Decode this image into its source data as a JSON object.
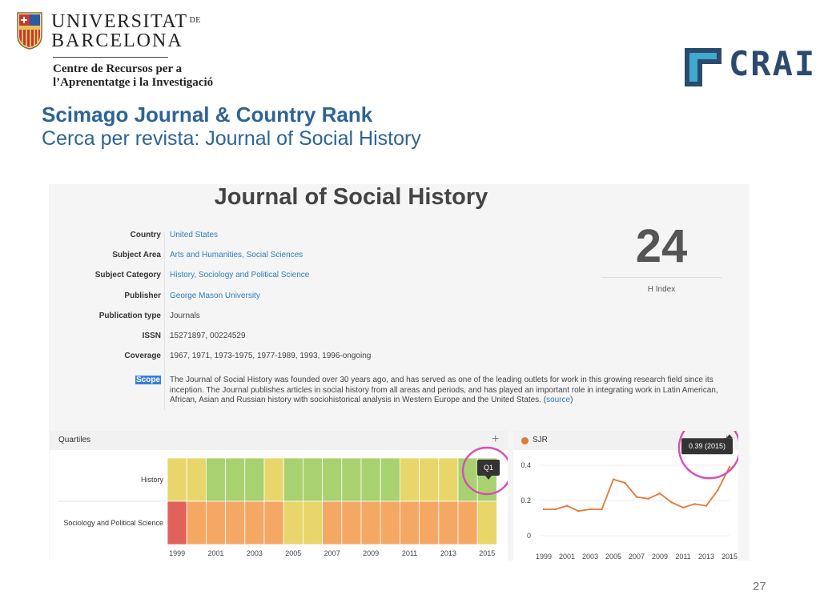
{
  "header": {
    "university_line1": "UNIVERSITAT",
    "university_de": "DE",
    "university_line2": "BARCELONA",
    "centre_line1": "Centre de Recursos per a",
    "centre_line2": "l’Aprenentatge i la Investigació",
    "crai_logo_text": "CRAI"
  },
  "slide": {
    "title": "Scimago Journal & Country Rank",
    "subtitle": "Cerca per revista: Journal of Social History",
    "page_number": "27"
  },
  "journal": {
    "title": "Journal of Social History",
    "fields": [
      {
        "label": "Country",
        "value": "United States",
        "link": true
      },
      {
        "label": "Subject Area",
        "value": "Arts and Humanities, Social Sciences",
        "link": true
      },
      {
        "label": "Subject Category",
        "value": "History, Sociology and Political Science",
        "link": true
      },
      {
        "label": "Publisher",
        "value": "George Mason University",
        "link": true
      },
      {
        "label": "Publication type",
        "value": "Journals",
        "link": false
      },
      {
        "label": "ISSN",
        "value": "15271897, 00224529",
        "link": false
      },
      {
        "label": "Coverage",
        "value": "1967, 1971, 1973-1975, 1977-1989, 1993, 1996-ongoing",
        "link": false
      }
    ],
    "scope_label": "Scope",
    "scope_text": "The Journal of Social History was founded over 30 years ago, and has served as one of the leading outlets for work in this growing research field since its inception. The Journal publishes articles in social history from all areas and periods, and has played an important role in integrating work in Latin American, African, Asian and Russian history with sociohistorical analysis in Western Europe and the United States. (",
    "scope_source_link": "source",
    "scope_close": ")",
    "h_index_value": "24",
    "h_index_label": "H Index"
  },
  "quartiles": {
    "title": "Quartiles",
    "plus_label": "+",
    "years": [
      1999,
      2000,
      2001,
      2002,
      2003,
      2004,
      2005,
      2006,
      2007,
      2008,
      2009,
      2010,
      2011,
      2012,
      2013,
      2014,
      2015
    ],
    "axis_labels": [
      "1999",
      "2001",
      "2003",
      "2005",
      "2007",
      "2009",
      "2011",
      "2013",
      "2015"
    ],
    "colors": {
      "Q1": "#a8d26f",
      "Q2": "#e8d66a",
      "Q3": "#f5a863",
      "Q4": "#e0625a"
    },
    "rows": [
      {
        "category": "History",
        "quartiles": [
          "Q2",
          "Q2",
          "Q1",
          "Q1",
          "Q1",
          "Q2",
          "Q1",
          "Q1",
          "Q1",
          "Q1",
          "Q1",
          "Q1",
          "Q2",
          "Q2",
          "Q2",
          "Q1",
          "Q1"
        ]
      },
      {
        "category": "Sociology and Political Science",
        "quartiles": [
          "Q4",
          "Q3",
          "Q3",
          "Q3",
          "Q3",
          "Q3",
          "Q2",
          "Q2",
          "Q3",
          "Q3",
          "Q3",
          "Q3",
          "Q3",
          "Q3",
          "Q3",
          "Q3",
          "Q2"
        ]
      }
    ],
    "tooltip": "Q1"
  },
  "sjr": {
    "title": "SJR",
    "plus_label": "+",
    "series_color": "#e07a35",
    "highlight_color": "#d94fb5",
    "tooltip": "0.39 (2015)",
    "chart_data": {
      "type": "line",
      "x": [
        1999,
        2000,
        2001,
        2002,
        2003,
        2004,
        2005,
        2006,
        2007,
        2008,
        2009,
        2010,
        2011,
        2012,
        2013,
        2014,
        2015
      ],
      "series": [
        {
          "name": "SJR",
          "values": [
            0.15,
            0.15,
            0.17,
            0.14,
            0.15,
            0.15,
            0.32,
            0.3,
            0.22,
            0.21,
            0.24,
            0.19,
            0.16,
            0.18,
            0.17,
            0.26,
            0.39
          ]
        }
      ],
      "ylim": [
        0,
        0.4
      ],
      "yticks": [
        "0",
        "0.2",
        "0.4"
      ],
      "xticks": [
        "1999",
        "2001",
        "2003",
        "2005",
        "2007",
        "2009",
        "2011",
        "2013",
        "2015"
      ]
    }
  }
}
